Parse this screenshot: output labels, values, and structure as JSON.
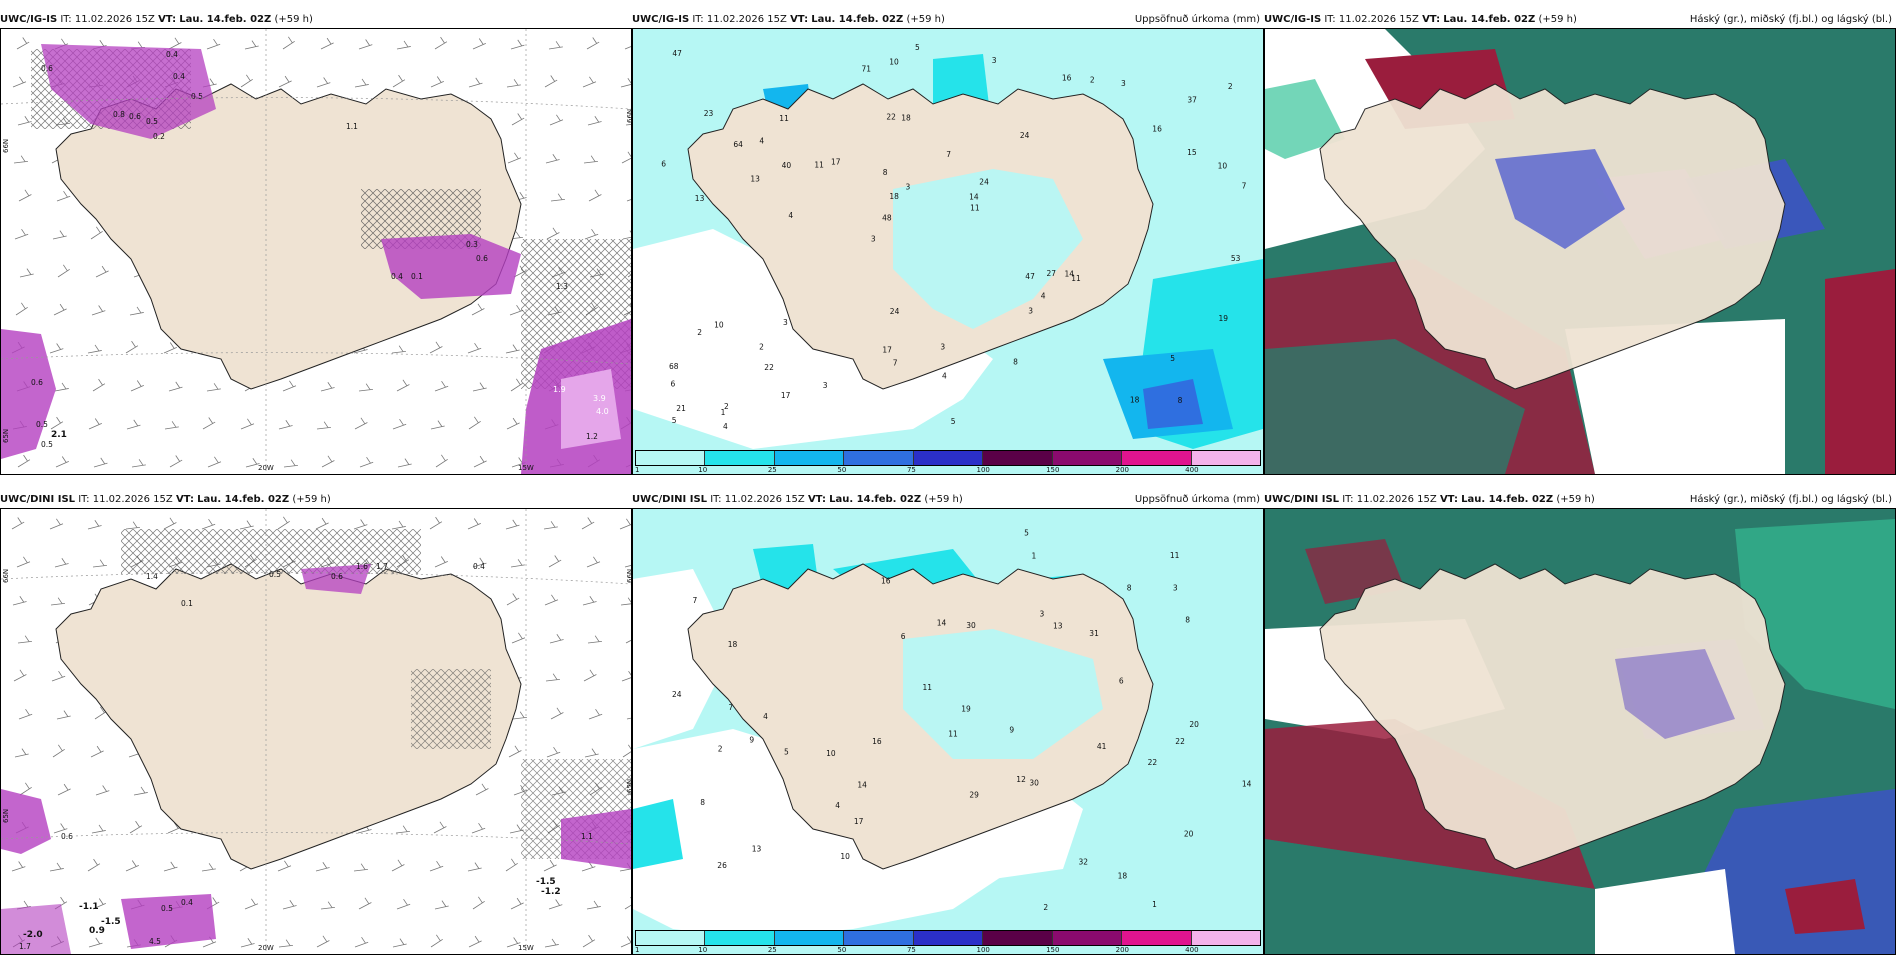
{
  "panels": [
    {
      "id": "tl",
      "model": "UWC/IG-IS",
      "it": "IT: 11.02.2026 15Z",
      "vt_label": "VT:",
      "vt": "Lau. 14.feb. 02Z",
      "lead": "(+59 h)",
      "right_title": "",
      "axis": {
        "x1": "20W",
        "x2": "15W",
        "y1": "66N",
        "y2": "65N"
      },
      "values": [
        "0.6",
        "0.4",
        "0.4",
        "0.5",
        "0.8",
        "0.6",
        "0.5",
        "0.2",
        "1.1",
        "0.3",
        "0.6",
        "0.4",
        "0.1",
        "1.3",
        "1.9",
        "3.9",
        "4.0",
        "0.6",
        "0.5",
        "2.1",
        "0.5",
        "1.2"
      ]
    },
    {
      "id": "tm",
      "model": "UWC/IG-IS",
      "it": "IT: 11.02.2026 15Z",
      "vt_label": "VT:",
      "vt": "Lau. 14.feb. 02Z",
      "lead": "(+59 h)",
      "right_title": "Uppsöfnuð úrkoma (mm)",
      "axis": {
        "y1": "66N"
      },
      "values": [
        "8",
        "13",
        "37",
        "3",
        "24",
        "2",
        "22",
        "7",
        "10",
        "17",
        "6",
        "22",
        "18",
        "24",
        "11",
        "23",
        "10",
        "7",
        "47",
        "15",
        "48",
        "17",
        "18",
        "11",
        "16",
        "3",
        "18",
        "5",
        "14",
        "5",
        "11",
        "13",
        "3",
        "17",
        "10",
        "14",
        "21",
        "7",
        "11",
        "2",
        "16",
        "2",
        "4",
        "8",
        "2",
        "4",
        "5",
        "3",
        "3",
        "5",
        "4",
        "6",
        "4",
        "2",
        "1",
        "3",
        "71",
        "3",
        "19",
        "24",
        "3",
        "27",
        "40",
        "68",
        "47",
        "64",
        "53",
        "8",
        "4"
      ],
      "colorbar": {
        "ticks": [
          "1",
          "10",
          "25",
          "50",
          "75",
          "100",
          "150",
          "200",
          "400"
        ],
        "colors": [
          "#b6f7f4",
          "#25e3ea",
          "#13b6ee",
          "#2f6fe0",
          "#2b2fc8",
          "#5a0047",
          "#8a0a6e",
          "#e0148f",
          "#f3b2ea"
        ]
      }
    },
    {
      "id": "tr",
      "model": "UWC/IG-IS",
      "it": "IT: 11.02.2026 15Z",
      "vt_label": "VT:",
      "vt": "Lau. 14.feb. 02Z",
      "lead": "(+59 h)",
      "right_title": "Háský (gr.), miðský (fj.bl.) og lágský (bl.)"
    },
    {
      "id": "bl",
      "model": "UWC/DINI ISL",
      "it": "IT: 11.02.2026 15Z",
      "vt_label": "VT:",
      "vt": "Lau. 14.feb. 02Z",
      "lead": "(+59 h)",
      "right_title": "",
      "axis": {
        "x1": "20W",
        "x2": "15W",
        "y1": "66N",
        "y2": "65N"
      },
      "values": [
        "1.4",
        "0.5",
        "0.1",
        "0.6",
        "1.6",
        "1.7",
        "0.4",
        "0.6",
        "-1.5",
        "-1.1",
        "-1.2",
        "-1.5",
        "-2.0",
        "0.9",
        "1.7",
        "4.5",
        "0.5",
        "0.4",
        "1.1"
      ]
    },
    {
      "id": "bm",
      "model": "UWC/DINI ISL",
      "it": "IT: 11.02.2026 15Z",
      "vt_label": "VT:",
      "vt": "Lau. 14.feb. 02Z",
      "lead": "(+59 h)",
      "right_title": "Uppsöfnuð úrkoma (mm)",
      "axis": {
        "y1": "66N",
        "y2": "65N"
      },
      "values": [
        "1",
        "9",
        "12",
        "7",
        "20",
        "18",
        "13",
        "10",
        "31",
        "14",
        "13",
        "18",
        "17",
        "16",
        "9",
        "8",
        "41",
        "19",
        "24",
        "26",
        "11",
        "30",
        "6",
        "14",
        "20",
        "7",
        "5",
        "11",
        "11",
        "3",
        "30",
        "2",
        "4",
        "3",
        "6",
        "22",
        "22",
        "32",
        "8",
        "2",
        "14",
        "29",
        "10",
        "5",
        "16",
        "4",
        "8",
        "1"
      ],
      "colorbar": {
        "ticks": [
          "1",
          "10",
          "25",
          "50",
          "75",
          "100",
          "150",
          "200",
          "400"
        ],
        "colors": [
          "#b6f7f4",
          "#25e3ea",
          "#13b6ee",
          "#2f6fe0",
          "#2b2fc8",
          "#5a0047",
          "#8a0a6e",
          "#e0148f",
          "#f3b2ea"
        ]
      }
    },
    {
      "id": "br",
      "model": "UWC/DINI ISL",
      "it": "IT: 11.02.2026 15Z",
      "vt_label": "VT:",
      "vt": "Lau. 14.feb. 02Z",
      "lead": "(+59 h)",
      "right_title": "Háský (gr.), miðský (fj.bl.) og lágský (bl.)"
    }
  ],
  "colors": {
    "land": "#efe3d3",
    "coast": "#222222",
    "snow_hatch": "#555555",
    "precip_purple": "#b43fc0",
    "precip_light": "#e5a6ea",
    "cyan_light": "#b6f7f4",
    "cyan": "#25e3ea",
    "teal": "#2a7a6a",
    "green": "#37c59a",
    "red": "#9a1d3d",
    "blue": "#3f4fd0",
    "violet": "#6a55c6"
  }
}
